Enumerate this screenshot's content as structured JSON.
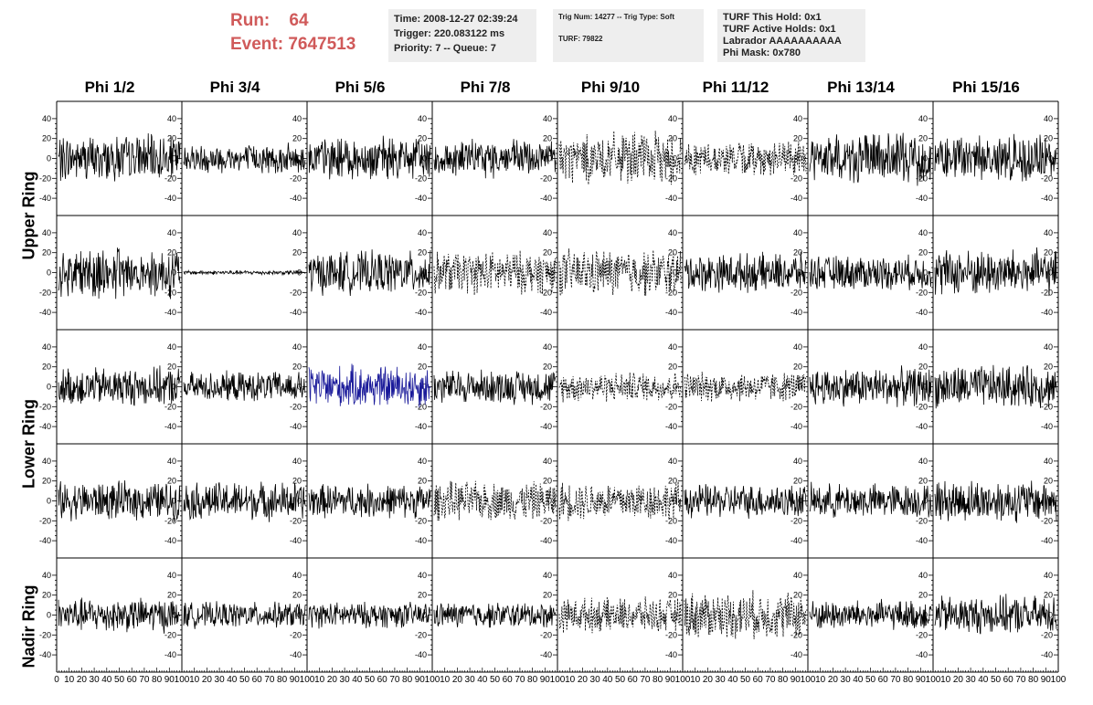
{
  "run": {
    "run_label": "Run:",
    "run_value": "64",
    "event_label": "Event:",
    "event_value": "7647513"
  },
  "info1": {
    "lines": [
      "Time: 2008-12-27 02:39:24",
      "Trigger: 220.083122 ms",
      "Priority: 7 -- Queue: 7"
    ]
  },
  "info2": {
    "lines": [
      "Trig Num: 14277 -- Trig Type: Soft",
      "",
      "TURF: 79822"
    ]
  },
  "info3": {
    "lines": [
      "TURF This Hold: 0x1",
      "TURF Active Holds: 0x1",
      "Labrador AAAAAAAAAA",
      "Phi Mask: 0x780"
    ]
  },
  "columns": [
    "Phi 1/2",
    "Phi 3/4",
    "Phi 5/6",
    "Phi 7/8",
    "Phi 9/10",
    "Phi 11/12",
    "Phi 13/14",
    "Phi 15/16"
  ],
  "rows": [
    "Upper Ring",
    "Lower Ring",
    "Nadir Ring"
  ],
  "colors": {
    "run_text": "#d05a5a",
    "trace": "#000000",
    "highlight_trace": "#1a1a9a",
    "info_bg": "#eeeeee"
  },
  "chart_data": {
    "type": "line",
    "panel_grid": {
      "rows": 5,
      "cols": 8
    },
    "x_ticks": [
      "0",
      "10",
      "20",
      "30",
      "40",
      "50",
      "60",
      "70",
      "80",
      "90",
      "100"
    ],
    "y_ticks": [
      "40",
      "20",
      "0",
      "-20",
      "-40"
    ],
    "xlim": [
      0,
      100
    ],
    "ylim": [
      -50,
      50
    ],
    "traces": [
      {
        "r": 0,
        "c": 0,
        "amp": 22,
        "style": "solid"
      },
      {
        "r": 0,
        "c": 1,
        "amp": 14,
        "style": "solid"
      },
      {
        "r": 0,
        "c": 2,
        "amp": 20,
        "style": "solid"
      },
      {
        "r": 0,
        "c": 3,
        "amp": 18,
        "style": "solid"
      },
      {
        "r": 0,
        "c": 4,
        "amp": 24,
        "style": "dashed"
      },
      {
        "r": 0,
        "c": 5,
        "amp": 16,
        "style": "dashed"
      },
      {
        "r": 0,
        "c": 6,
        "amp": 24,
        "style": "solid"
      },
      {
        "r": 0,
        "c": 7,
        "amp": 22,
        "style": "solid"
      },
      {
        "r": 1,
        "c": 0,
        "amp": 24,
        "style": "solid"
      },
      {
        "r": 1,
        "c": 1,
        "amp": 2,
        "style": "solid"
      },
      {
        "r": 1,
        "c": 2,
        "amp": 20,
        "style": "solid"
      },
      {
        "r": 1,
        "c": 3,
        "amp": 20,
        "style": "dashed"
      },
      {
        "r": 1,
        "c": 4,
        "amp": 22,
        "style": "dashed"
      },
      {
        "r": 1,
        "c": 5,
        "amp": 18,
        "style": "solid"
      },
      {
        "r": 1,
        "c": 6,
        "amp": 16,
        "style": "solid"
      },
      {
        "r": 1,
        "c": 7,
        "amp": 22,
        "style": "solid"
      },
      {
        "r": 2,
        "c": 0,
        "amp": 18,
        "style": "solid"
      },
      {
        "r": 2,
        "c": 1,
        "amp": 14,
        "style": "solid"
      },
      {
        "r": 2,
        "c": 2,
        "amp": 20,
        "style": "blue"
      },
      {
        "r": 2,
        "c": 3,
        "amp": 16,
        "style": "solid"
      },
      {
        "r": 2,
        "c": 4,
        "amp": 14,
        "style": "dashed"
      },
      {
        "r": 2,
        "c": 5,
        "amp": 14,
        "style": "dashed"
      },
      {
        "r": 2,
        "c": 6,
        "amp": 18,
        "style": "solid"
      },
      {
        "r": 2,
        "c": 7,
        "amp": 20,
        "style": "solid"
      },
      {
        "r": 3,
        "c": 0,
        "amp": 18,
        "style": "solid"
      },
      {
        "r": 3,
        "c": 1,
        "amp": 18,
        "style": "solid"
      },
      {
        "r": 3,
        "c": 2,
        "amp": 16,
        "style": "solid"
      },
      {
        "r": 3,
        "c": 3,
        "amp": 18,
        "style": "dashed"
      },
      {
        "r": 3,
        "c": 4,
        "amp": 18,
        "style": "dashed"
      },
      {
        "r": 3,
        "c": 5,
        "amp": 16,
        "style": "solid"
      },
      {
        "r": 3,
        "c": 6,
        "amp": 16,
        "style": "solid"
      },
      {
        "r": 3,
        "c": 7,
        "amp": 20,
        "style": "solid"
      },
      {
        "r": 4,
        "c": 0,
        "amp": 16,
        "style": "solid"
      },
      {
        "r": 4,
        "c": 1,
        "amp": 12,
        "style": "solid"
      },
      {
        "r": 4,
        "c": 2,
        "amp": 12,
        "style": "solid"
      },
      {
        "r": 4,
        "c": 3,
        "amp": 12,
        "style": "solid"
      },
      {
        "r": 4,
        "c": 4,
        "amp": 16,
        "style": "dashed"
      },
      {
        "r": 4,
        "c": 5,
        "amp": 22,
        "style": "dashed"
      },
      {
        "r": 4,
        "c": 6,
        "amp": 14,
        "style": "solid"
      },
      {
        "r": 4,
        "c": 7,
        "amp": 18,
        "style": "solid"
      }
    ]
  }
}
